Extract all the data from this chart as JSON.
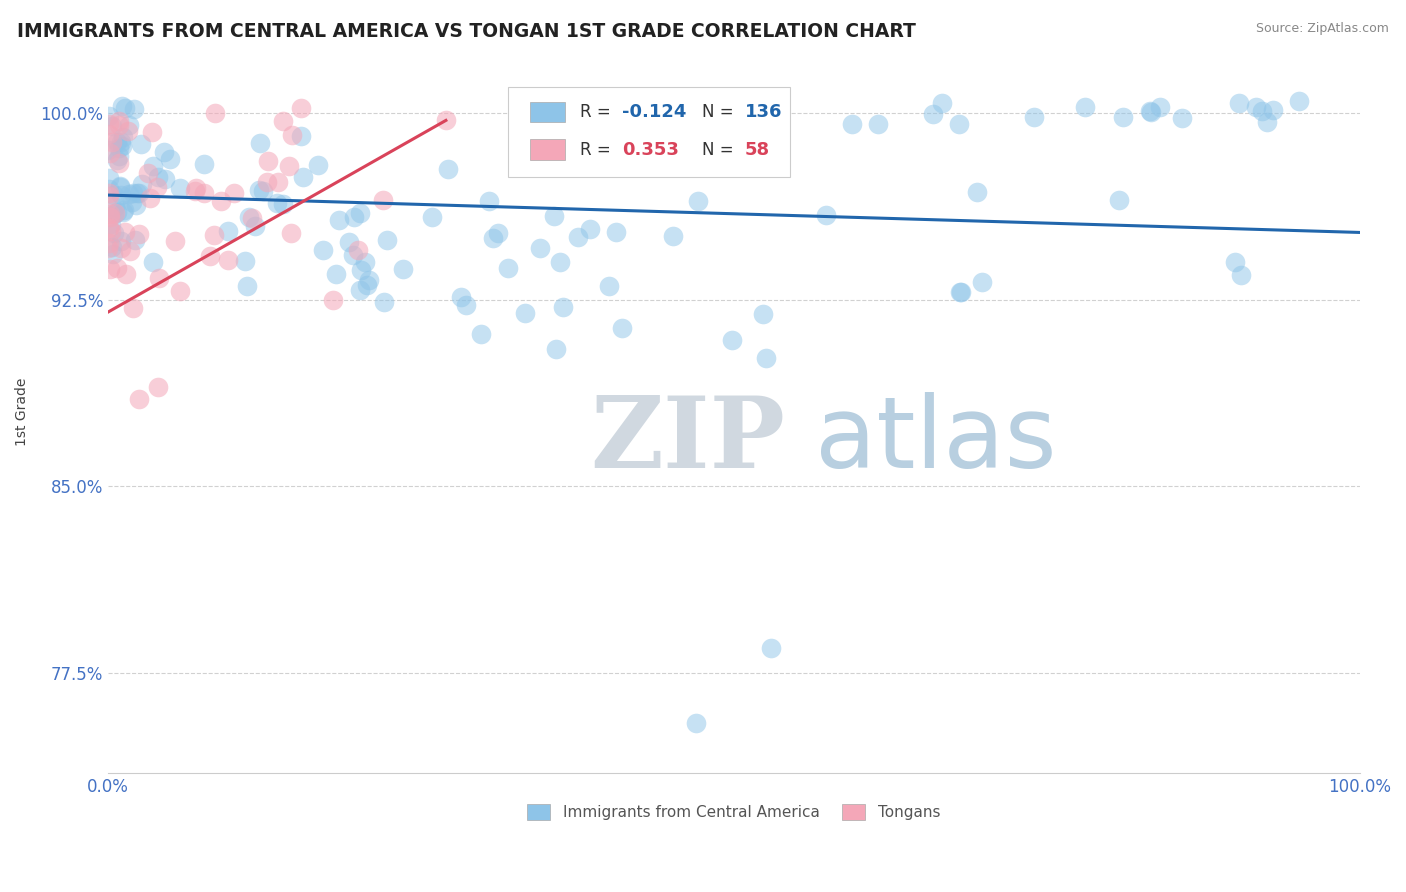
{
  "title": "IMMIGRANTS FROM CENTRAL AMERICA VS TONGAN 1ST GRADE CORRELATION CHART",
  "source_text": "Source: ZipAtlas.com",
  "ylabel": "1st Grade",
  "xlim": [
    0.0,
    1.0
  ],
  "ylim": [
    0.735,
    1.025
  ],
  "yticks": [
    0.775,
    0.85,
    0.925,
    1.0
  ],
  "ytick_labels": [
    "77.5%",
    "85.0%",
    "92.5%",
    "100.0%"
  ],
  "xtick_labels": [
    "0.0%",
    "100.0%"
  ],
  "blue_R": -0.124,
  "blue_N": 136,
  "pink_R": 0.353,
  "pink_N": 58,
  "blue_color": "#8ec4e8",
  "pink_color": "#f4a7b8",
  "blue_line_color": "#2166ac",
  "pink_line_color": "#d9435a",
  "watermark_zip": "ZIP",
  "watermark_atlas": "atlas",
  "watermark_zip_color": "#d0d8e0",
  "watermark_atlas_color": "#b8cfe0",
  "legend_label_blue": "Immigrants from Central America",
  "legend_label_pink": "Tongans",
  "title_color": "#222222",
  "tick_color": "#4472c4",
  "annotation_color": "#4472c4",
  "grid_color": "#cccccc",
  "blue_line_start_y": 0.967,
  "blue_line_end_y": 0.952,
  "pink_line_start_x": 0.0,
  "pink_line_start_y": 0.92,
  "pink_line_end_x": 0.27,
  "pink_line_end_y": 0.997
}
